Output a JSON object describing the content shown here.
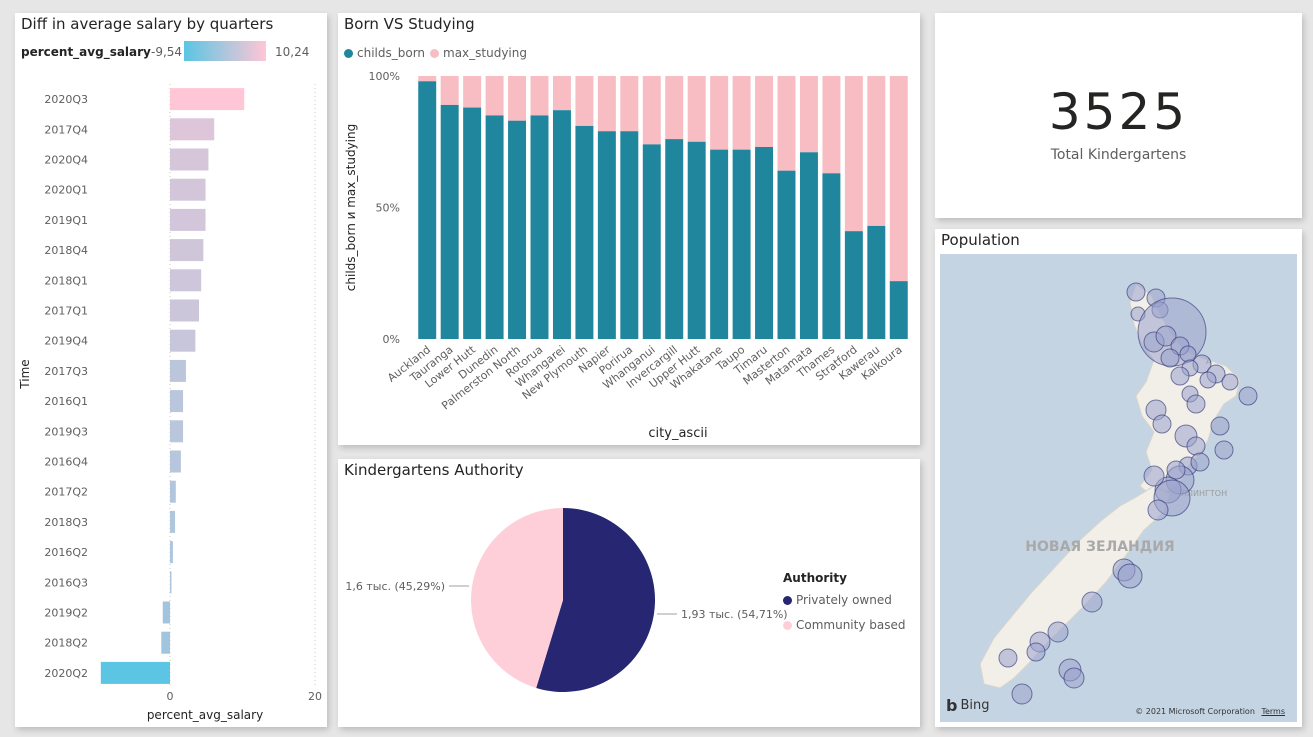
{
  "salary_card": {
    "title": "Diff in average salary by quarters",
    "legend_field": "percent_avg_salary",
    "legend_min": "-9,54",
    "legend_max": "10,24",
    "gradient_start": "#5bc5e3",
    "gradient_end": "#ffc6d6"
  },
  "born_card": {
    "title": "Born VS Studying",
    "legend": [
      "childs_born",
      "max_studying"
    ]
  },
  "kpi": {
    "value": "3525",
    "label": "Total Kindergartens"
  },
  "pie_card": {
    "title": "Kindergartens Authority",
    "legend_title": "Authority",
    "legend": [
      "Privately owned",
      "Community based"
    ]
  },
  "map_card": {
    "title": "Population",
    "country_label": "НОВАЯ ЗЕЛАНДИЯ",
    "city_label": "ЛЛИНГТОН",
    "city_label_2": "А",
    "bing": "Bing",
    "copyright": "© 2021 Microsoft Corporation",
    "terms": "Terms"
  },
  "chart_data": [
    {
      "type": "bar",
      "orientation": "horizontal",
      "title": "Diff in average salary by quarters",
      "xlabel": "percent_avg_salary",
      "ylabel": "Time",
      "xlim": [
        -12,
        20
      ],
      "xticks": [
        "0",
        "20"
      ],
      "categories": [
        "2020Q3",
        "2017Q4",
        "2020Q4",
        "2020Q1",
        "2019Q1",
        "2018Q4",
        "2018Q1",
        "2017Q1",
        "2019Q4",
        "2017Q3",
        "2016Q1",
        "2019Q3",
        "2016Q4",
        "2017Q2",
        "2018Q3",
        "2016Q2",
        "2016Q3",
        "2019Q2",
        "2018Q2",
        "2020Q2"
      ],
      "values": [
        10.24,
        6.1,
        5.3,
        4.9,
        4.9,
        4.6,
        4.3,
        4.0,
        3.5,
        2.2,
        1.8,
        1.8,
        1.5,
        0.8,
        0.7,
        0.4,
        0.2,
        -1.0,
        -1.2,
        -9.54
      ]
    },
    {
      "type": "bar",
      "stacked": "percent",
      "title": "Born VS Studying",
      "xlabel": "city_ascii",
      "ylabel": "childs_born и max_studying",
      "yticks": [
        "0%",
        "50%",
        "100%"
      ],
      "categories": [
        "Auckland",
        "Tauranga",
        "Lower Hutt",
        "Dunedin",
        "Palmerston North",
        "Rotorua",
        "Whangarei",
        "New Plymouth",
        "Napier",
        "Porirua",
        "Whanganui",
        "Invercargill",
        "Upper Hutt",
        "Whakatane",
        "Taupo",
        "Timaru",
        "Masterton",
        "Matamata",
        "Thames",
        "Stratford",
        "Kawerau",
        "Kaikoura"
      ],
      "series": [
        {
          "name": "childs_born",
          "values": [
            98,
            89,
            88,
            85,
            83,
            85,
            87,
            81,
            79,
            79,
            74,
            76,
            75,
            72,
            72,
            73,
            64,
            71,
            63,
            41,
            43,
            22
          ],
          "color": "#1f869d"
        },
        {
          "name": "max_studying",
          "values": [
            2,
            11,
            12,
            15,
            17,
            15,
            13,
            19,
            21,
            21,
            26,
            24,
            25,
            28,
            28,
            27,
            36,
            29,
            37,
            59,
            57,
            78
          ],
          "color": "#f7bdc3"
        }
      ]
    },
    {
      "type": "pie",
      "title": "Kindergartens Authority",
      "legend_title": "Authority",
      "slices": [
        {
          "name": "Privately owned",
          "value": 1.93,
          "percent": 54.71,
          "label": "1,93 тыс. (54,71%)",
          "color": "#262672"
        },
        {
          "name": "Community based",
          "value": 1.6,
          "percent": 45.29,
          "label": "1,6 тыс. (45,29%)",
          "color": "#ffcfd9"
        }
      ]
    }
  ]
}
